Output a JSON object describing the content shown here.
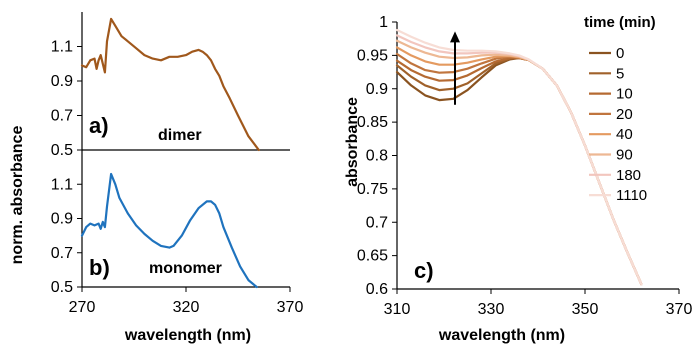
{
  "figure": {
    "left_ylabel": "norm. absorbance",
    "left_xlabel": "wavelength (nm)",
    "right_ylabel": "absorbance",
    "right_xlabel": "wavelength (nm)",
    "legend_title": "time (min)"
  },
  "chart_data": [
    {
      "panel": "a)",
      "type": "line",
      "annotation": "dimer",
      "xlim": [
        270,
        370
      ],
      "ylim": [
        0.5,
        1.3
      ],
      "yticks": [
        "0.5",
        "0.7",
        "0.9",
        "1.1"
      ],
      "series": [
        {
          "color": "#A0581C",
          "x": [
            270,
            272,
            274,
            276,
            277,
            278,
            279,
            281,
            282,
            284,
            286,
            289,
            292,
            296,
            300,
            304,
            308,
            312,
            316,
            320,
            323,
            326,
            328,
            330,
            332,
            334,
            336,
            338,
            341,
            345,
            350,
            355
          ],
          "y": [
            0.99,
            0.98,
            1.02,
            1.03,
            0.97,
            1.02,
            1.05,
            0.95,
            1.13,
            1.26,
            1.22,
            1.16,
            1.13,
            1.09,
            1.05,
            1.03,
            1.02,
            1.04,
            1.04,
            1.05,
            1.07,
            1.08,
            1.07,
            1.05,
            1.02,
            0.97,
            0.93,
            0.87,
            0.8,
            0.7,
            0.58,
            0.5
          ]
        }
      ]
    },
    {
      "panel": "b)",
      "type": "line",
      "annotation": "monomer",
      "xlim": [
        270,
        370
      ],
      "xticks": [
        "270",
        "320",
        "370"
      ],
      "ylim": [
        0.5,
        1.3
      ],
      "yticks": [
        "0.5",
        "0.7",
        "0.9",
        "1.1"
      ],
      "series": [
        {
          "color": "#1F73BE",
          "x": [
            270,
            272,
            274,
            276,
            278,
            279,
            280,
            281,
            282,
            284,
            286,
            288,
            292,
            296,
            300,
            304,
            308,
            312,
            314,
            318,
            322,
            326,
            330,
            332,
            334,
            336,
            338,
            342,
            346,
            350,
            354
          ],
          "y": [
            0.8,
            0.85,
            0.87,
            0.86,
            0.87,
            0.84,
            0.88,
            0.85,
            0.97,
            1.16,
            1.1,
            1.02,
            0.93,
            0.86,
            0.81,
            0.77,
            0.74,
            0.73,
            0.74,
            0.8,
            0.89,
            0.96,
            1.0,
            1.0,
            0.98,
            0.93,
            0.85,
            0.73,
            0.62,
            0.54,
            0.5
          ]
        }
      ]
    },
    {
      "panel": "c)",
      "type": "line",
      "xlim": [
        310,
        370
      ],
      "xticks": [
        "310",
        "330",
        "350",
        "370"
      ],
      "ylim": [
        0.6,
        1
      ],
      "yticks": [
        "0.6",
        "0.65",
        "0.7",
        "0.75",
        "0.8",
        "0.85",
        "0.9",
        "0.95",
        "1"
      ],
      "arrow_range": [
        0.876,
        0.986
      ],
      "series": [
        {
          "name": "0",
          "color": "#8A5320",
          "x": [
            310,
            313,
            316,
            319,
            322,
            325,
            328,
            331,
            334,
            336,
            338,
            341,
            344,
            347,
            350,
            353,
            356,
            359,
            362
          ],
          "y": [
            0.925,
            0.905,
            0.89,
            0.883,
            0.885,
            0.898,
            0.917,
            0.935,
            0.944,
            0.946,
            0.943,
            0.93,
            0.905,
            0.865,
            0.815,
            0.76,
            0.705,
            0.655,
            0.607
          ]
        },
        {
          "name": "5",
          "color": "#A0612A",
          "x": [
            310,
            313,
            316,
            319,
            322,
            325,
            328,
            331,
            334,
            336,
            338,
            341,
            344,
            347,
            350,
            353,
            356,
            359,
            362
          ],
          "y": [
            0.935,
            0.918,
            0.905,
            0.898,
            0.9,
            0.908,
            0.923,
            0.938,
            0.945,
            0.946,
            0.943,
            0.93,
            0.905,
            0.865,
            0.815,
            0.76,
            0.705,
            0.655,
            0.607
          ]
        },
        {
          "name": "10",
          "color": "#B56A32",
          "x": [
            310,
            313,
            316,
            319,
            322,
            325,
            328,
            331,
            334,
            336,
            338,
            341,
            344,
            347,
            350,
            353,
            356,
            359,
            362
          ],
          "y": [
            0.942,
            0.928,
            0.918,
            0.912,
            0.913,
            0.92,
            0.931,
            0.941,
            0.946,
            0.946,
            0.943,
            0.93,
            0.905,
            0.865,
            0.815,
            0.76,
            0.705,
            0.655,
            0.607
          ]
        },
        {
          "name": "20",
          "color": "#C0753E",
          "x": [
            310,
            313,
            316,
            319,
            322,
            325,
            328,
            331,
            334,
            336,
            338,
            341,
            344,
            347,
            350,
            353,
            356,
            359,
            362
          ],
          "y": [
            0.952,
            0.938,
            0.928,
            0.924,
            0.925,
            0.93,
            0.938,
            0.945,
            0.948,
            0.947,
            0.943,
            0.93,
            0.905,
            0.865,
            0.815,
            0.76,
            0.705,
            0.655,
            0.607
          ]
        },
        {
          "name": "40",
          "color": "#E49A60",
          "x": [
            310,
            313,
            316,
            319,
            322,
            325,
            328,
            331,
            334,
            336,
            338,
            341,
            344,
            347,
            350,
            353,
            356,
            359,
            362
          ],
          "y": [
            0.962,
            0.95,
            0.941,
            0.936,
            0.936,
            0.939,
            0.944,
            0.948,
            0.949,
            0.947,
            0.943,
            0.93,
            0.905,
            0.865,
            0.815,
            0.76,
            0.705,
            0.655,
            0.607
          ]
        },
        {
          "name": "90",
          "color": "#EDB893",
          "x": [
            310,
            313,
            316,
            319,
            322,
            325,
            328,
            331,
            334,
            336,
            338,
            341,
            344,
            347,
            350,
            353,
            356,
            359,
            362
          ],
          "y": [
            0.972,
            0.962,
            0.954,
            0.948,
            0.946,
            0.947,
            0.95,
            0.951,
            0.95,
            0.948,
            0.943,
            0.93,
            0.905,
            0.865,
            0.815,
            0.76,
            0.705,
            0.655,
            0.607
          ]
        },
        {
          "name": "180",
          "color": "#F2C6BE",
          "x": [
            310,
            313,
            316,
            319,
            322,
            325,
            328,
            331,
            334,
            336,
            338,
            341,
            344,
            347,
            350,
            353,
            356,
            359,
            362
          ],
          "y": [
            0.98,
            0.97,
            0.962,
            0.956,
            0.953,
            0.953,
            0.954,
            0.954,
            0.952,
            0.949,
            0.944,
            0.93,
            0.905,
            0.865,
            0.815,
            0.76,
            0.705,
            0.655,
            0.607
          ]
        },
        {
          "name": "1110",
          "color": "#F7DDD5",
          "x": [
            310,
            313,
            316,
            319,
            322,
            325,
            328,
            331,
            334,
            336,
            338,
            341,
            344,
            347,
            350,
            353,
            356,
            359,
            362
          ],
          "y": [
            0.988,
            0.978,
            0.969,
            0.962,
            0.958,
            0.957,
            0.957,
            0.956,
            0.953,
            0.95,
            0.944,
            0.93,
            0.905,
            0.865,
            0.815,
            0.76,
            0.705,
            0.655,
            0.607
          ]
        }
      ]
    }
  ]
}
